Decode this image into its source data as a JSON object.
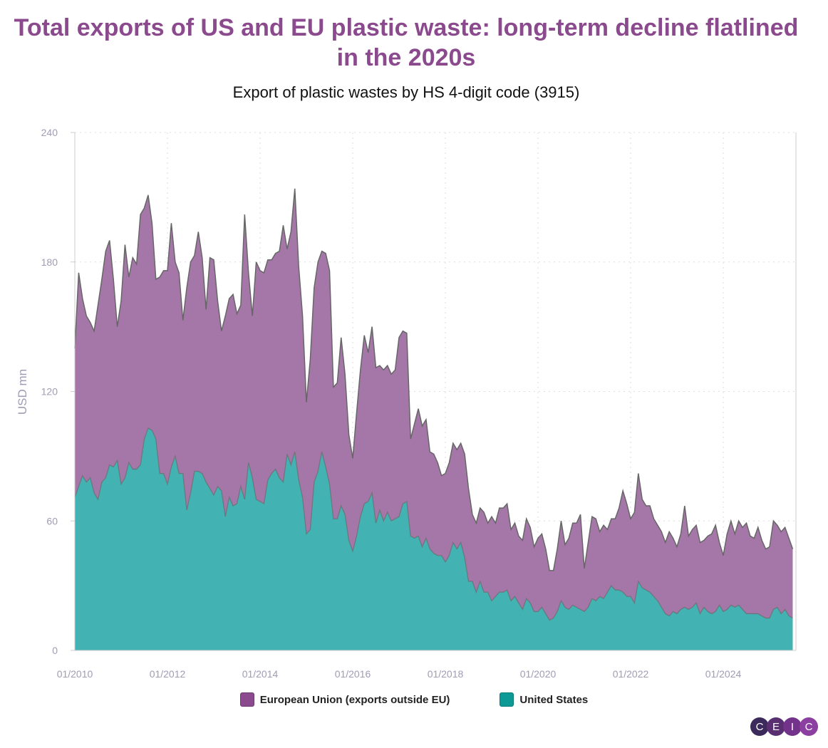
{
  "title": "Total exports of US and EU plastic waste: long-term decline flatlined in the 2020s",
  "subtitle": "Export of plastic wastes by HS 4-digit code (3915)",
  "logo": [
    "C",
    "E",
    "I",
    "C"
  ],
  "colors": {
    "eu": "#a577a8",
    "us": "#43b2b3",
    "line": "#666666",
    "title": "#8b4a8d"
  },
  "chart_data": {
    "type": "area",
    "stacked": true,
    "frequency": "monthly",
    "x_start": "01/2010",
    "x_end": "07/2025",
    "xticks": [
      "01/2010",
      "01/2012",
      "01/2014",
      "01/2016",
      "01/2018",
      "01/2020",
      "01/2022",
      "01/2024"
    ],
    "yticks": [
      "0",
      "60",
      "120",
      "180",
      "240"
    ],
    "ylabel": "USD mn",
    "ylim": [
      0,
      240
    ],
    "grid": true,
    "legend": "bottom",
    "series": [
      {
        "name": "United States",
        "color": "#43b2b3",
        "values": [
          71,
          76,
          81,
          78,
          80,
          73,
          70,
          78,
          80,
          86,
          85,
          88,
          77,
          80,
          87,
          84,
          84,
          86,
          98,
          103,
          102,
          98,
          82,
          82,
          77,
          85,
          90,
          82,
          82,
          65,
          73,
          83,
          83,
          82,
          78,
          75,
          72,
          76,
          74,
          62,
          71,
          67,
          68,
          76,
          70,
          87,
          80,
          70,
          69,
          68,
          79,
          82,
          84,
          80,
          78,
          91,
          86,
          92,
          79,
          71,
          54,
          56,
          78,
          83,
          92,
          85,
          77,
          61,
          61,
          67,
          63,
          51,
          46,
          53,
          62,
          68,
          69,
          73,
          59,
          65,
          60,
          64,
          60,
          61,
          62,
          68,
          69,
          53,
          52,
          53,
          48,
          52,
          47,
          45,
          44,
          44,
          41,
          44,
          50,
          47,
          50,
          43,
          32,
          32,
          27,
          32,
          27,
          27,
          23,
          25,
          27,
          27,
          28,
          23,
          25,
          22,
          19,
          24,
          22,
          18,
          18,
          20,
          17,
          14,
          15,
          18,
          23,
          20,
          19,
          21,
          20,
          19,
          18,
          20,
          24,
          23,
          25,
          24,
          27,
          30,
          28,
          28,
          27,
          25,
          25,
          22,
          32,
          29,
          28,
          27,
          25,
          23,
          20,
          17,
          16,
          18,
          17,
          19,
          20,
          19,
          20,
          22,
          17,
          20,
          18,
          17,
          18,
          21,
          18,
          19,
          21,
          20,
          21,
          19,
          17,
          17,
          17,
          17,
          16,
          15,
          15,
          19,
          20,
          17,
          19,
          16,
          15
        ]
      },
      {
        "name": "European Union (exports outside EU)",
        "color": "#a577a8",
        "values": [
          69,
          99,
          82,
          77,
          72,
          75,
          90,
          94,
          105,
          104,
          87,
          62,
          85,
          108,
          86,
          98,
          95,
          116,
          107,
          108,
          96,
          74,
          91,
          94,
          99,
          113,
          90,
          93,
          71,
          103,
          107,
          100,
          111,
          100,
          80,
          107,
          109,
          86,
          74,
          93,
          92,
          98,
          88,
          84,
          132,
          88,
          75,
          110,
          107,
          107,
          102,
          99,
          100,
          105,
          119,
          95,
          108,
          122,
          99,
          84,
          61,
          79,
          90,
          97,
          93,
          99,
          99,
          61,
          63,
          78,
          65,
          49,
          43,
          57,
          68,
          78,
          69,
          77,
          72,
          67,
          70,
          68,
          68,
          69,
          83,
          80,
          78,
          45,
          53,
          59,
          56,
          55,
          45,
          46,
          43,
          37,
          41,
          43,
          46,
          46,
          46,
          48,
          43,
          31,
          32,
          34,
          37,
          32,
          39,
          34,
          39,
          39,
          40,
          33,
          34,
          31,
          32,
          37,
          35,
          30,
          34,
          34,
          30,
          23,
          22,
          29,
          37,
          29,
          33,
          38,
          39,
          44,
          20,
          30,
          38,
          38,
          30,
          34,
          29,
          31,
          33,
          38,
          47,
          43,
          36,
          42,
          50,
          41,
          39,
          40,
          36,
          35,
          35,
          33,
          39,
          34,
          31,
          35,
          47,
          34,
          36,
          36,
          33,
          31,
          35,
          37,
          40,
          29,
          26,
          35,
          39,
          34,
          39,
          38,
          42,
          36,
          35,
          40,
          35,
          32,
          33,
          41,
          38,
          38,
          38,
          36,
          32
        ]
      }
    ]
  }
}
